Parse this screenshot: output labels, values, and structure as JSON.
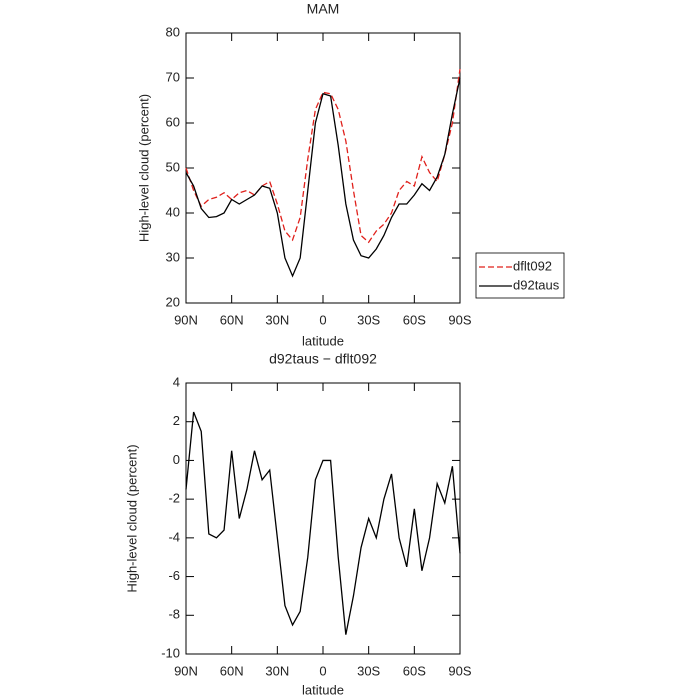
{
  "chart_data": [
    {
      "type": "line",
      "title": "MAM",
      "xlabel": "latitude",
      "ylabel": "High-level cloud (percent)",
      "x": [
        90,
        85,
        80,
        75,
        70,
        65,
        60,
        55,
        50,
        45,
        40,
        35,
        30,
        25,
        20,
        15,
        10,
        5,
        0,
        -5,
        -10,
        -15,
        -20,
        -25,
        -30,
        -35,
        -40,
        -45,
        -50,
        -55,
        -60,
        -65,
        -70,
        -75,
        -80,
        -85,
        -90
      ],
      "xlim": [
        90,
        -90
      ],
      "xticks": [
        {
          "value": 90,
          "label": "90N"
        },
        {
          "value": 60,
          "label": "60N"
        },
        {
          "value": 30,
          "label": "30N"
        },
        0,
        {
          "value": -30,
          "label": "30S"
        },
        {
          "value": -60,
          "label": "60S"
        },
        {
          "value": -90,
          "label": "90S"
        }
      ],
      "ylim": [
        20,
        80
      ],
      "yticks": [
        20,
        30,
        40,
        50,
        60,
        70,
        80
      ],
      "legend": "outside-right",
      "series": [
        {
          "name": "dflt092",
          "color": "#e0201b",
          "linestyle": "dashed",
          "values": [
            50,
            45,
            41.5,
            43,
            43.5,
            44.5,
            43,
            44.5,
            45,
            44,
            46,
            47,
            42,
            36,
            34,
            39,
            52,
            63,
            66.8,
            66.5,
            63,
            56,
            45,
            35,
            33.5,
            36,
            37.5,
            40,
            45,
            47,
            46,
            52.5,
            49,
            47,
            53,
            60,
            72
          ]
        },
        {
          "name": "d92taus",
          "color": "#000000",
          "linestyle": "solid",
          "values": [
            49,
            46,
            41,
            39,
            39.2,
            40,
            43,
            42,
            43,
            44,
            46,
            45.5,
            40,
            30,
            26,
            30,
            45,
            60,
            66.5,
            66,
            55,
            42,
            34,
            30.5,
            30,
            32,
            35,
            39,
            42,
            42,
            44,
            46.5,
            45,
            48,
            53,
            62,
            70
          ]
        }
      ]
    },
    {
      "type": "line",
      "title": "d92taus − dflt092",
      "xlabel": "latitude",
      "ylabel": "High-level cloud (percent)",
      "x": [
        90,
        85,
        80,
        75,
        70,
        65,
        60,
        55,
        50,
        45,
        40,
        35,
        30,
        25,
        20,
        15,
        10,
        5,
        0,
        -5,
        -10,
        -15,
        -20,
        -25,
        -30,
        -35,
        -40,
        -45,
        -50,
        -55,
        -60,
        -65,
        -70,
        -75,
        -80,
        -85,
        -90
      ],
      "xlim": [
        90,
        -90
      ],
      "xticks": [
        {
          "value": 90,
          "label": "90N"
        },
        {
          "value": 60,
          "label": "60N"
        },
        {
          "value": 30,
          "label": "30N"
        },
        0,
        {
          "value": -30,
          "label": "30S"
        },
        {
          "value": -60,
          "label": "60S"
        },
        {
          "value": -90,
          "label": "90S"
        }
      ],
      "ylim": [
        -10,
        4
      ],
      "yticks": [
        -10,
        -8,
        -6,
        -4,
        -2,
        0,
        2,
        4
      ],
      "series": [
        {
          "color": "#000000",
          "linestyle": "solid",
          "values": [
            -1.5,
            2.5,
            1.5,
            -3.8,
            -4,
            -3.6,
            0.5,
            -3,
            -1.5,
            0.5,
            -1,
            -0.5,
            -4,
            -7.5,
            -8.5,
            -7.8,
            -5,
            -1,
            0,
            0,
            -5,
            -9,
            -7,
            -4.5,
            -3,
            -4,
            -2,
            -0.7,
            -4,
            -5.5,
            -2.5,
            -5.7,
            -4,
            -1.2,
            -2.2,
            -0.3,
            -4.8
          ]
        }
      ]
    }
  ]
}
